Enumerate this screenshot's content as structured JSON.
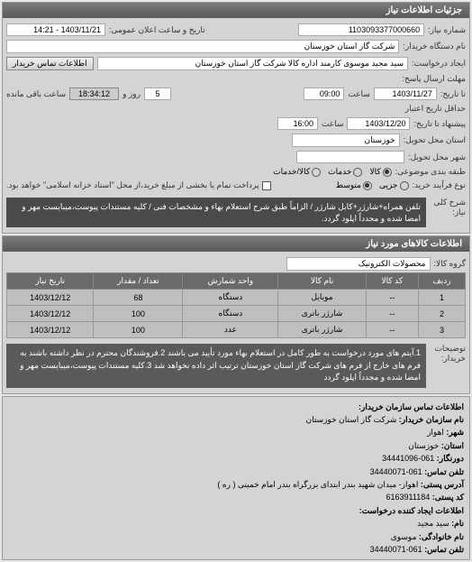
{
  "header": {
    "title": "جزئیات اطلاعات نیاز"
  },
  "need": {
    "number_label": "شماره نیاز:",
    "number": "1103093377000660",
    "datetime_label": "تاریخ و ساعت اعلان عمومی:",
    "datetime": "1403/11/21 - 14:21",
    "buyer_label": "نام دستگاه خریدار:",
    "buyer": "شرکت گاز استان خوزستان",
    "request_ref_label": "ایجاد درخواست:",
    "requester": "سید مجید موسوی کارمند اداره کالا شرکت گاز استان خوزستان",
    "seller_contact_btn": "اطلاعات تماس خریدار",
    "deadline_label": "مهلت ارسال پاسخ:",
    "to_date_label": "تا تاریخ:",
    "deadline_date": "1403/11/27",
    "deadline_time_label": "ساعت",
    "deadline_time": "09:00",
    "remaining_days": "5",
    "remaining_days_label": "روز و",
    "remaining_time": "18:34:12",
    "remaining_label": "ساعت باقی مانده",
    "validity_label": "حداقل تاریخ اعتبار",
    "validity_date_label": "پیشنهاد تا تاریخ:",
    "validity_date": "1403/12/20",
    "validity_time_label": "ساعت",
    "validity_time": "16:00",
    "delivery_state_label": "استان محل تحویل:",
    "delivery_state": "خوزستان",
    "delivery_city_label": "شهر محل تحویل:",
    "delivery_city": "",
    "subject_label": "طبقه بندی موضوعی:",
    "radios": {
      "kala": "کالا",
      "khadamat": "خدمات",
      "kala_khadamat": "کالا/خدمات"
    },
    "purchase_type_label": "نوع فرآیند خرید:",
    "purchase_radios": {
      "jozi": "جزیی",
      "motavaset": "متوسط"
    },
    "payment_note": "پرداخت تمام یا بخشی از مبلغ خرید،از محل \"اسناد خزانه اسلامی\" خواهد بود.",
    "desc_label": "شرح کلی\nنیاز:",
    "desc": "تلفن همراه+شارژر+کابل شارژر / الزاماً طبق شرح استعلام بهاء و مشخصات فنی / کلیه مستندات پیوست،میبایست مهر و امضا شده و مجدداً اپلود گردد."
  },
  "items": {
    "header": "اطلاعات کالاهای مورد نیاز",
    "group_label": "گروه کالا:",
    "group": "محصولات الکترونیک",
    "columns": [
      "ردیف",
      "کد کالا",
      "نام کالا",
      "واحد شمارش",
      "تعداد / مقدار",
      "تاریخ نیاز"
    ],
    "rows": [
      [
        "1",
        "--",
        "موبایل",
        "دستگاه",
        "68",
        "1403/12/12"
      ],
      [
        "2",
        "--",
        "شارژر باتری",
        "دستگاه",
        "100",
        "1403/12/12"
      ],
      [
        "3",
        "--",
        "شارژر باتری",
        "عدد",
        "100",
        "1403/12/12"
      ]
    ]
  },
  "notes": {
    "label": "توضیحات\nخریدار:",
    "text": "1.آیتم های مورد درخواست به طور کامل در استعلام بهاء مورد تأیید می باشند 2.فروشندگان محترم در نظر داشته باشند به فرم های خارج از فرم های شرکت گاز استان خوزستان ترتیب اثر داده نخواهد شد 3.کلیه مستندات پیوست،میبایست مهر و امضا شده و مجدداً اپلود گردد"
  },
  "contact": {
    "header": "اطلاعات تماس سازمان خریدار:",
    "org_label": "نام سازمان خریدار:",
    "org": "شرکت گاز استان خوزستان",
    "city_label": "شهر:",
    "city": "اهواز",
    "state_label": "استان:",
    "state": "خوزستان",
    "fax_label": "دورنگار:",
    "fax": "061-34441096",
    "phone_label": "تلفن تماس:",
    "phone": "061-34440071",
    "addr_label": "آدرس پستی:",
    "addr": "اهواز- میدان شهید بندر ابتدای بزرگراه بندر امام خمینی ( ره )",
    "postal_label": "کد پستی:",
    "postal": "6163911184",
    "creator_header": "اطلاعات ایجاد کننده درخواست:",
    "fname_label": "نام:",
    "fname": "سید مجید",
    "lname_label": "نام خانوادگی:",
    "lname": "موسوی",
    "cphone_label": "تلفن تماس:",
    "cphone": "061-34440071"
  }
}
